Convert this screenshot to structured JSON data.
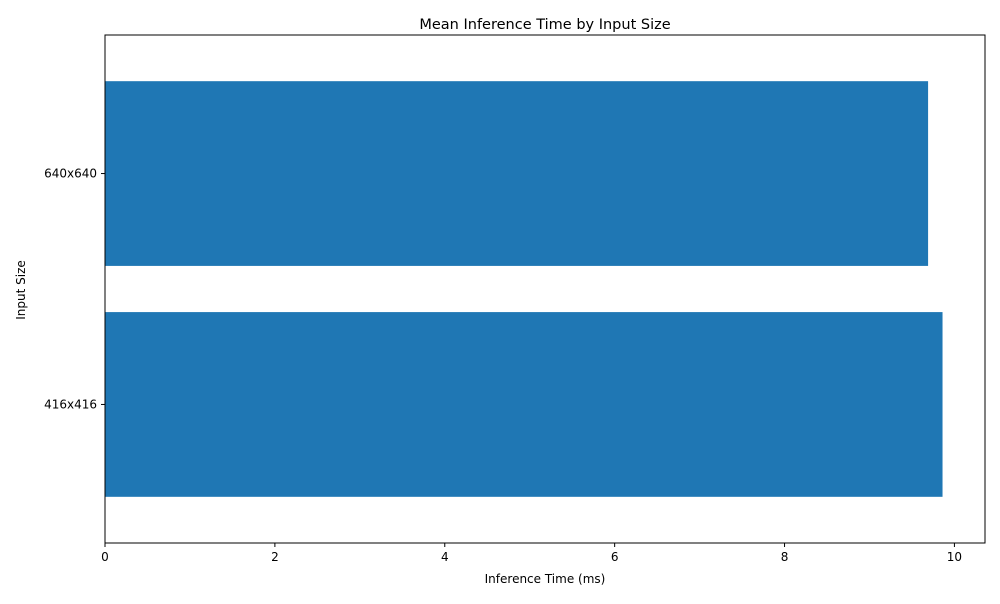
{
  "colors": {
    "bar": "#1f77b4",
    "axis": "#000000",
    "background": "#ffffff"
  },
  "chart_data": {
    "type": "bar",
    "orientation": "horizontal",
    "title": "Mean Inference Time by Input Size",
    "xlabel": "Inference Time (ms)",
    "ylabel": "Input Size",
    "categories": [
      "416x416",
      "640x640"
    ],
    "values": [
      9.86,
      9.69
    ],
    "xlim": [
      0,
      10.36
    ],
    "xticks": [
      0,
      2,
      4,
      6,
      8,
      10
    ],
    "grid": false,
    "legend": "none"
  }
}
